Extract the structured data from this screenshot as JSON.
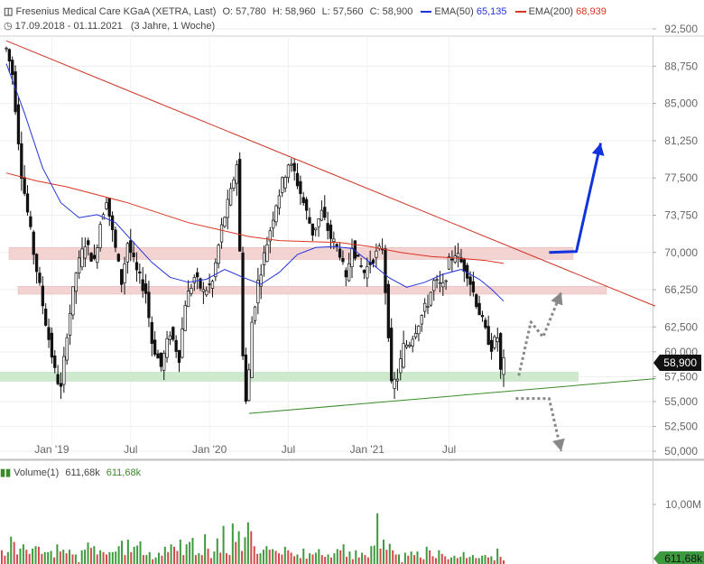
{
  "header": {
    "title": "Fresenius Medical Care KGaA (XETRA, Last)",
    "ohlc": {
      "o_label": "O:",
      "o": "57,780",
      "h_label": "H:",
      "h": "58,960",
      "l_label": "L:",
      "l": "57,560",
      "c_label": "C:",
      "c": "58,900"
    },
    "ema50_label": "EMA(50)",
    "ema50_value": "65,135",
    "ema200_label": "EMA(200)",
    "ema200_value": "68,939",
    "range": "17.09.2018 - 01.11.2021",
    "span": "(3 Jahre, 1 Woche)",
    "colors": {
      "ema50": "#2233dd",
      "ema200": "#dd3322"
    }
  },
  "volume": {
    "label": "Volume(1)",
    "value1": "611,68k",
    "value2": "611,68k",
    "axis_label": "10,00M",
    "last_badge": "611,68k"
  },
  "chart_data": {
    "type": "candlestick",
    "y_ticks": [
      "92,500",
      "88,750",
      "85,000",
      "81,250",
      "77,500",
      "73,750",
      "70,000",
      "66,250",
      "62,500",
      "60,000",
      "57,500",
      "55,000",
      "52,500",
      "50,000"
    ],
    "y_tick_values": [
      92.5,
      88.75,
      85.0,
      81.25,
      77.5,
      73.75,
      70.0,
      66.25,
      62.5,
      60.0,
      57.5,
      55.0,
      52.5,
      50.0
    ],
    "x_ticks": [
      "Jan '19",
      "Jul",
      "Jan '20",
      "Jul",
      "Jan '21",
      "Jul"
    ],
    "last_price": "58,900",
    "last_price_value": 58.9,
    "price_path": [
      {
        "w": 0,
        "p": 90.5
      },
      {
        "w": 2,
        "p": 88.0
      },
      {
        "w": 5,
        "p": 78.0
      },
      {
        "w": 9,
        "p": 70.0
      },
      {
        "w": 13,
        "p": 63.0
      },
      {
        "w": 16,
        "p": 58.0
      },
      {
        "w": 18,
        "p": 56.2
      },
      {
        "w": 20,
        "p": 62.0
      },
      {
        "w": 23,
        "p": 68.0
      },
      {
        "w": 26,
        "p": 71.0
      },
      {
        "w": 29,
        "p": 69.0
      },
      {
        "w": 31,
        "p": 73.0
      },
      {
        "w": 33,
        "p": 75.5
      },
      {
        "w": 35,
        "p": 72.0
      },
      {
        "w": 38,
        "p": 67.0
      },
      {
        "w": 40,
        "p": 71.0
      },
      {
        "w": 43,
        "p": 68.0
      },
      {
        "w": 46,
        "p": 66.0
      },
      {
        "w": 48,
        "p": 61.0
      },
      {
        "w": 51,
        "p": 58.5
      },
      {
        "w": 54,
        "p": 62.0
      },
      {
        "w": 57,
        "p": 59.5
      },
      {
        "w": 59,
        "p": 65.0
      },
      {
        "w": 62,
        "p": 67.5
      },
      {
        "w": 65,
        "p": 66.0
      },
      {
        "w": 68,
        "p": 67.0
      },
      {
        "w": 71,
        "p": 72.5
      },
      {
        "w": 74,
        "p": 76.0
      },
      {
        "w": 76,
        "p": 79.0
      },
      {
        "w": 77,
        "p": 70.0
      },
      {
        "w": 78,
        "p": 60.0
      },
      {
        "w": 79,
        "p": 55.0
      },
      {
        "w": 80,
        "p": 58.0
      },
      {
        "w": 81,
        "p": 63.0
      },
      {
        "w": 83,
        "p": 67.0
      },
      {
        "w": 86,
        "p": 71.0
      },
      {
        "w": 89,
        "p": 75.0
      },
      {
        "w": 91,
        "p": 77.0
      },
      {
        "w": 93,
        "p": 79.0
      },
      {
        "w": 95,
        "p": 78.0
      },
      {
        "w": 98,
        "p": 75.0
      },
      {
        "w": 101,
        "p": 72.0
      },
      {
        "w": 104,
        "p": 74.0
      },
      {
        "w": 107,
        "p": 71.5
      },
      {
        "w": 110,
        "p": 70.0
      },
      {
        "w": 112,
        "p": 67.0
      },
      {
        "w": 114,
        "p": 71.0
      },
      {
        "w": 116,
        "p": 69.0
      },
      {
        "w": 118,
        "p": 68.0
      },
      {
        "w": 121,
        "p": 69.5
      },
      {
        "w": 124,
        "p": 70.5
      },
      {
        "w": 126,
        "p": 62.0
      },
      {
        "w": 127,
        "p": 56.5
      },
      {
        "w": 129,
        "p": 57.5
      },
      {
        "w": 131,
        "p": 60.5
      },
      {
        "w": 133,
        "p": 61.0
      },
      {
        "w": 136,
        "p": 63.0
      },
      {
        "w": 139,
        "p": 65.0
      },
      {
        "w": 141,
        "p": 67.0
      },
      {
        "w": 144,
        "p": 66.5
      },
      {
        "w": 146,
        "p": 69.0
      },
      {
        "w": 148,
        "p": 70.0
      },
      {
        "w": 150,
        "p": 69.0
      },
      {
        "w": 152,
        "p": 68.0
      },
      {
        "w": 154,
        "p": 66.0
      },
      {
        "w": 156,
        "p": 64.0
      },
      {
        "w": 158,
        "p": 62.0
      },
      {
        "w": 160,
        "p": 60.5
      },
      {
        "w": 162,
        "p": 61.5
      },
      {
        "w": 163,
        "p": 58.0
      },
      {
        "w": 164,
        "p": 58.9
      }
    ],
    "total_weeks": 164,
    "ema50": [
      {
        "w": 0,
        "p": 89.0
      },
      {
        "w": 6,
        "p": 84.0
      },
      {
        "w": 12,
        "p": 78.5
      },
      {
        "w": 18,
        "p": 75.0
      },
      {
        "w": 24,
        "p": 73.5
      },
      {
        "w": 30,
        "p": 73.8
      },
      {
        "w": 36,
        "p": 73.0
      },
      {
        "w": 42,
        "p": 71.0
      },
      {
        "w": 48,
        "p": 69.0
      },
      {
        "w": 54,
        "p": 67.5
      },
      {
        "w": 60,
        "p": 67.0
      },
      {
        "w": 66,
        "p": 67.3
      },
      {
        "w": 72,
        "p": 68.3
      },
      {
        "w": 78,
        "p": 67.5
      },
      {
        "w": 84,
        "p": 66.8
      },
      {
        "w": 90,
        "p": 68.0
      },
      {
        "w": 96,
        "p": 69.8
      },
      {
        "w": 102,
        "p": 70.5
      },
      {
        "w": 108,
        "p": 70.6
      },
      {
        "w": 114,
        "p": 70.4
      },
      {
        "w": 120,
        "p": 69.0
      },
      {
        "w": 126,
        "p": 67.5
      },
      {
        "w": 132,
        "p": 66.5
      },
      {
        "w": 138,
        "p": 67.0
      },
      {
        "w": 144,
        "p": 67.8
      },
      {
        "w": 150,
        "p": 68.3
      },
      {
        "w": 156,
        "p": 67.3
      },
      {
        "w": 160,
        "p": 66.3
      },
      {
        "w": 164,
        "p": 65.1
      }
    ],
    "ema200": [
      {
        "w": 0,
        "p": 78.0
      },
      {
        "w": 10,
        "p": 77.2
      },
      {
        "w": 20,
        "p": 76.6
      },
      {
        "w": 30,
        "p": 75.8
      },
      {
        "w": 40,
        "p": 75.0
      },
      {
        "w": 50,
        "p": 74.0
      },
      {
        "w": 60,
        "p": 73.0
      },
      {
        "w": 70,
        "p": 72.3
      },
      {
        "w": 80,
        "p": 71.6
      },
      {
        "w": 90,
        "p": 71.2
      },
      {
        "w": 100,
        "p": 71.1
      },
      {
        "w": 110,
        "p": 71.0
      },
      {
        "w": 120,
        "p": 70.6
      },
      {
        "w": 130,
        "p": 70.0
      },
      {
        "w": 140,
        "p": 69.6
      },
      {
        "w": 150,
        "p": 69.4
      },
      {
        "w": 158,
        "p": 69.2
      },
      {
        "w": 164,
        "p": 68.9
      }
    ],
    "zones": [
      {
        "from": 69.3,
        "to": 70.5,
        "color": "#f3d2d2"
      },
      {
        "from": 65.8,
        "to": 66.6,
        "color": "#f3d2d2"
      },
      {
        "from": 57.0,
        "to": 58.0,
        "color": "#cfe9cf"
      }
    ],
    "trendlines": [
      {
        "from": {
          "w": 0,
          "p": 91.3
        },
        "to": {
          "w": 214,
          "p": 64.6
        },
        "color": "#cc3322"
      },
      {
        "from": {
          "w": 80,
          "p": 53.8
        },
        "to": {
          "w": 214,
          "p": 57.3
        },
        "color": "#3a8a2a"
      }
    ],
    "arrows": [
      {
        "style": "solid",
        "color": "#1133dd",
        "points": [
          {
            "w": 179,
            "p": 70.0
          },
          {
            "w": 188,
            "p": 70.1
          },
          {
            "w": 196,
            "p": 81.0
          }
        ]
      },
      {
        "style": "dotted",
        "color": "#888888",
        "points": [
          {
            "w": 169,
            "p": 57.6
          },
          {
            "w": 173,
            "p": 63.0
          },
          {
            "w": 177,
            "p": 61.5
          },
          {
            "w": 183,
            "p": 66.0
          }
        ]
      },
      {
        "style": "dotted",
        "color": "#888888",
        "points": [
          {
            "w": 168,
            "p": 55.3
          },
          {
            "w": 179,
            "p": 55.3
          },
          {
            "w": 183,
            "p": 50.0
          }
        ]
      }
    ],
    "volume_scale_max": 10.0,
    "volume_series": [
      2.3,
      1.4,
      2.0,
      4.6,
      3.7,
      1.6,
      2.6,
      3.3,
      2.4,
      1.7,
      2.6,
      3.0,
      2.9,
      1.7,
      2.0,
      2.0,
      2.2,
      1.1,
      3.3,
      2.1,
      2.4,
      1.8,
      2.4,
      1.6,
      1.6,
      0.3,
      2.3,
      2.4,
      3.6,
      2.7,
      3.0,
      1.6,
      2.3,
      2.0,
      1.6,
      2.0,
      2.0,
      2.1,
      3.0,
      3.9,
      1.5,
      4.1,
      2.0,
      2.9,
      3.1,
      3.8,
      1.5,
      1.5,
      2.0,
      0.8,
      1.1,
      1.9,
      1.4,
      2.9,
      2.0,
      3.3,
      2.9,
      2.2,
      4.1,
      1.5,
      3.3,
      3.7,
      4.4,
      1.5,
      1.8,
      1.5,
      5.0,
      2.6,
      1.0,
      2.1,
      4.3,
      1.9,
      6.4,
      1.8,
      1.5,
      6.8,
      3.7,
      5.5,
      2.2,
      4.5,
      7.0,
      5.5,
      3.0,
      1.7,
      1.8,
      2.4,
      3.0,
      2.4,
      2.5,
      2.2,
      1.8,
      1.6,
      2.9,
      2.3,
      1.9,
      1.3,
      1.6,
      1.0,
      2.6,
      0.9,
      1.8,
      1.6,
      1.9,
      2.5,
      1.5,
      1.2,
      1.6,
      1.1,
      1.8,
      2.5,
      2.3,
      3.3,
      1.2,
      2.1,
      0.8,
      2.3,
      1.1,
      1.9,
      1.5,
      1.1,
      3.0,
      3.1,
      8.5,
      2.6,
      4.1,
      2.4,
      3.4,
      2.3,
      1.6,
      1.6,
      0.3,
      1.9,
      1.4,
      2.1,
      1.5,
      2.1,
      1.1,
      0.8,
      2.9,
      2.3,
      1.3,
      1.0,
      2.3,
      1.7,
      1.3,
      0.8,
      1.1,
      1.4,
      1.0,
      1.2,
      2.0,
      1.0,
      1.2,
      1.5,
      1.0,
      1.0,
      1.4,
      1.5,
      1.1,
      1.3,
      0.6,
      2.6,
      1.2,
      0.6
    ]
  }
}
